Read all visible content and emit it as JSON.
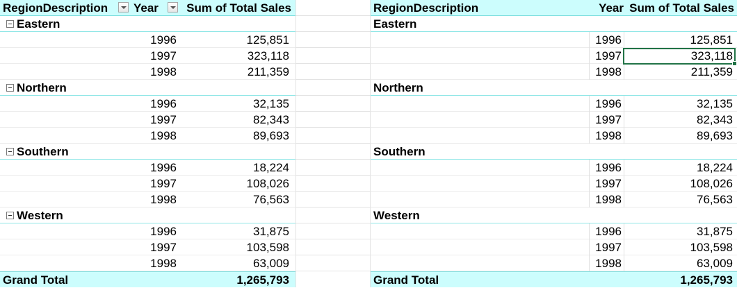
{
  "left_pivot": {
    "headers": {
      "region": "RegionDescription",
      "year": "Year",
      "sales": "Sum of Total Sales"
    },
    "regions": [
      {
        "name": "Eastern",
        "rows": [
          {
            "year": "1996",
            "sales": "125,851"
          },
          {
            "year": "1997",
            "sales": "323,118"
          },
          {
            "year": "1998",
            "sales": "211,359"
          }
        ]
      },
      {
        "name": "Northern",
        "rows": [
          {
            "year": "1996",
            "sales": "32,135"
          },
          {
            "year": "1997",
            "sales": "82,343"
          },
          {
            "year": "1998",
            "sales": "89,693"
          }
        ]
      },
      {
        "name": "Southern",
        "rows": [
          {
            "year": "1996",
            "sales": "18,224"
          },
          {
            "year": "1997",
            "sales": "108,026"
          },
          {
            "year": "1998",
            "sales": "76,563"
          }
        ]
      },
      {
        "name": "Western",
        "rows": [
          {
            "year": "1996",
            "sales": "31,875"
          },
          {
            "year": "1997",
            "sales": "103,598"
          },
          {
            "year": "1998",
            "sales": "63,009"
          }
        ]
      }
    ],
    "grand_total": {
      "label": "Grand Total",
      "value": "1,265,793"
    }
  },
  "right_pivot": {
    "headers": {
      "region": "RegionDescription",
      "year": "Year",
      "sales": "Sum of Total Sales"
    },
    "regions": [
      {
        "name": "Eastern",
        "rows": [
          {
            "year": "1996",
            "sales": "125,851"
          },
          {
            "year": "1997",
            "sales": "323,118"
          },
          {
            "year": "1998",
            "sales": "211,359"
          }
        ]
      },
      {
        "name": "Northern",
        "rows": [
          {
            "year": "1996",
            "sales": "32,135"
          },
          {
            "year": "1997",
            "sales": "82,343"
          },
          {
            "year": "1998",
            "sales": "89,693"
          }
        ]
      },
      {
        "name": "Southern",
        "rows": [
          {
            "year": "1996",
            "sales": "18,224"
          },
          {
            "year": "1997",
            "sales": "108,026"
          },
          {
            "year": "1998",
            "sales": "76,563"
          }
        ]
      },
      {
        "name": "Western",
        "rows": [
          {
            "year": "1996",
            "sales": "31,875"
          },
          {
            "year": "1997",
            "sales": "103,598"
          },
          {
            "year": "1998",
            "sales": "63,009"
          }
        ]
      }
    ],
    "grand_total": {
      "label": "Grand Total",
      "value": "1,265,793"
    }
  },
  "icons": {
    "filter": "dropdown-arrow-icon",
    "collapse": "minus-box-icon"
  },
  "colors": {
    "header_fill": "#ccfdfd",
    "selection_border": "#217346"
  }
}
